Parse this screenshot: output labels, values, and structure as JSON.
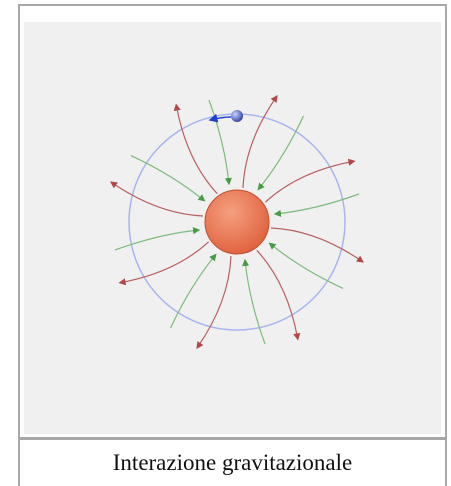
{
  "caption": "Interazione gravitazionale"
}
